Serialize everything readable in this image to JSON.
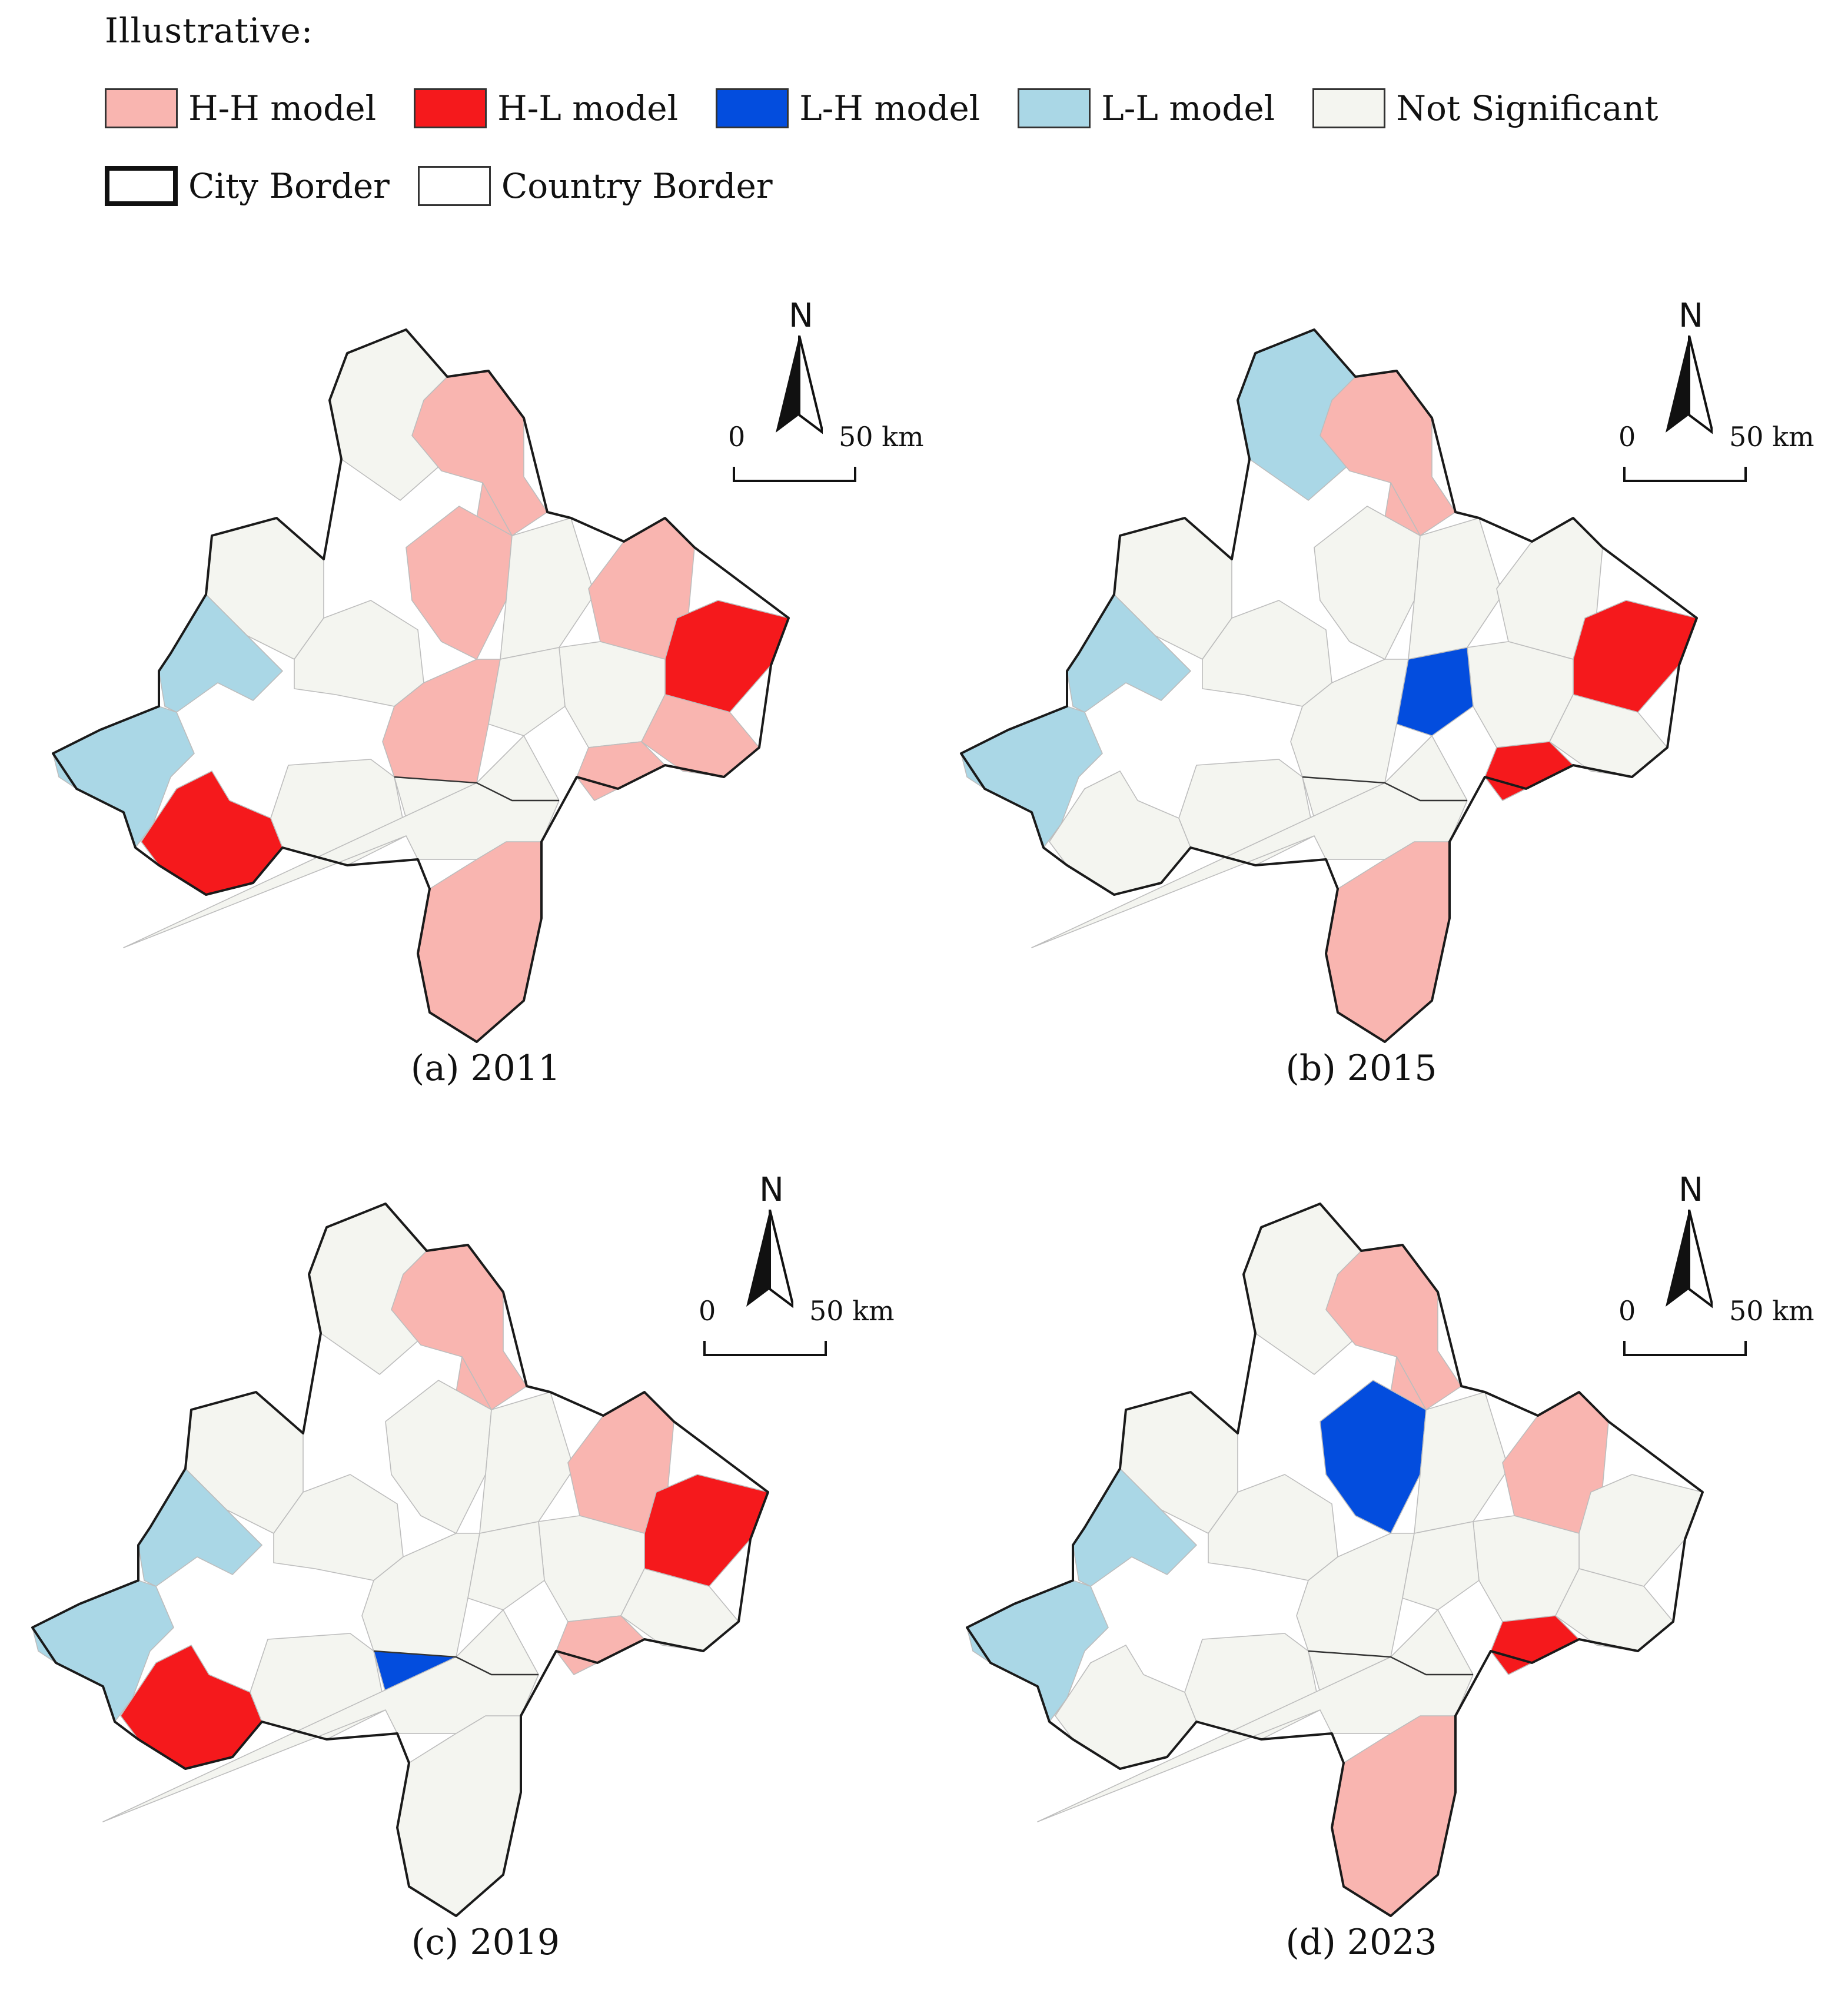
{
  "legend": {
    "title": "Illustrative:",
    "items": [
      {
        "label": "H-H model",
        "color": "#f9b5b0"
      },
      {
        "label": "H-L model",
        "color": "#f5191c"
      },
      {
        "label": "L-H model",
        "color": "#034dde"
      },
      {
        "label": "L-L model",
        "color": "#aad7e6"
      },
      {
        "label": "Not Significant",
        "color": "#f4f5f0"
      }
    ],
    "borders": [
      {
        "label": "City Border"
      },
      {
        "label": "Country Border"
      }
    ]
  },
  "panels": [
    {
      "caption": "(a) 2011",
      "regions": [
        "ns",
        "hh",
        "hh",
        "ns",
        "hh",
        "ns",
        "ns",
        "hh",
        "hl",
        "ll",
        "hh",
        "ns",
        "ns",
        "hh",
        "ll",
        "hl",
        "ns",
        "ns",
        "hh",
        "hh",
        "ns"
      ]
    },
    {
      "caption": "(b) 2015",
      "regions": [
        "ll",
        "hh",
        "hh",
        "ns",
        "ns",
        "ns",
        "ns",
        "ns",
        "hl",
        "ll",
        "ns",
        "ns",
        "lh",
        "ns",
        "ll",
        "ns",
        "ns",
        "ns",
        "hl",
        "hh",
        "ns"
      ]
    },
    {
      "caption": "(c) 2019",
      "regions": [
        "ns",
        "hh",
        "hh",
        "ns",
        "ns",
        "ns",
        "ns",
        "hh",
        "hl",
        "ll",
        "ns",
        "ns",
        "ns",
        "ns",
        "ll",
        "hl",
        "ns",
        "lh",
        "hh",
        "ns",
        "ns"
      ]
    },
    {
      "caption": "(d) 2023",
      "regions": [
        "ns",
        "hh",
        "hh",
        "ns",
        "lh",
        "ns",
        "ns",
        "hh",
        "ns",
        "ll",
        "ns",
        "ns",
        "ns",
        "ns",
        "ll",
        "ns",
        "ns",
        "ns",
        "hl",
        "hh",
        "ns"
      ]
    }
  ],
  "north_label": "N",
  "scale": {
    "start": "0",
    "end": "50",
    "unit": "km"
  }
}
